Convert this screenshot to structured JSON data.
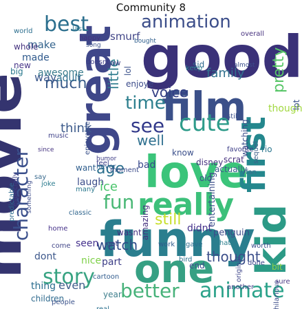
{
  "title": "Community 8",
  "words": [
    {
      "text": "movie",
      "color": "#34346f"
    },
    {
      "text": "good",
      "color": "#3a3178"
    },
    {
      "text": "love",
      "color": "#3bc47a"
    },
    {
      "text": "funny",
      "color": "#2a7e8e"
    },
    {
      "text": "film",
      "color": "#3b5089"
    },
    {
      "text": "great",
      "color": "#3f4789"
    },
    {
      "text": "kid",
      "color": "#2c9a86"
    },
    {
      "text": "one",
      "color": "#36a083"
    },
    {
      "text": "really",
      "color": "#3cc07a"
    },
    {
      "text": "first",
      "color": "#24878d"
    },
    {
      "text": "character",
      "color": "#3a4f8b"
    },
    {
      "text": "cute",
      "color": "#2d9b8a"
    },
    {
      "text": "story",
      "color": "#38a382"
    },
    {
      "text": "animation",
      "color": "#3c4e8a"
    },
    {
      "text": "animate",
      "color": "#2ba28a"
    },
    {
      "text": "best",
      "color": "#2c6f8e"
    },
    {
      "text": "time",
      "color": "#2d7f8e"
    },
    {
      "text": "see",
      "color": "#32398a"
    },
    {
      "text": "fun",
      "color": "#4ab876"
    },
    {
      "text": "better",
      "color": "#47b27a"
    },
    {
      "text": "age",
      "color": "#2b6f8d"
    },
    {
      "text": "much",
      "color": "#3b5c8b"
    },
    {
      "text": "little",
      "color": "#2f7d8e"
    },
    {
      "text": "voice",
      "color": "#323e84"
    },
    {
      "text": "family",
      "color": "#31718e"
    },
    {
      "text": "pretty",
      "color": "#58c668"
    },
    {
      "text": "well",
      "color": "#2d6f8e"
    },
    {
      "text": "watch",
      "color": "#2f4b88"
    },
    {
      "text": "thought",
      "color": "#3c4f8a"
    },
    {
      "text": "think",
      "color": "#3d5b8b"
    },
    {
      "text": "still",
      "color": "#c8df2c"
    },
    {
      "text": "ice",
      "color": "#49c46b"
    },
    {
      "text": "make",
      "color": "#34648d"
    },
    {
      "text": "made",
      "color": "#2f598c"
    },
    {
      "text": "way",
      "color": "#3a578b"
    },
    {
      "text": "smurf",
      "color": "#404587"
    },
    {
      "text": "adult",
      "color": "#2d6f8e"
    },
    {
      "text": "enjoye",
      "color": "#3a4a89"
    },
    {
      "text": "though",
      "color": "#a2d841"
    },
    {
      "text": "laugh",
      "color": "#3c4d8a"
    },
    {
      "text": "bad",
      "color": "#36478a"
    },
    {
      "text": "entertaining",
      "color": "#3c4e8a"
    },
    {
      "text": "didnt",
      "color": "#43308a"
    },
    {
      "text": "even",
      "color": "#3f5d8b"
    },
    {
      "text": "dont",
      "color": "#3d588b"
    },
    {
      "text": "thing",
      "color": "#2a6d8e"
    },
    {
      "text": "seen",
      "color": "#45328d"
    },
    {
      "text": "nice",
      "color": "#7ed048"
    },
    {
      "text": "part",
      "color": "#3b3d86"
    },
    {
      "text": "children",
      "color": "#2f6a8e"
    },
    {
      "text": "year",
      "color": "#3f7f8d"
    },
    {
      "text": "penguin",
      "color": "#3c4a89"
    },
    {
      "text": "awesome",
      "color": "#3a7c8d"
    },
    {
      "text": "new",
      "color": "#453387"
    },
    {
      "text": "big",
      "color": "#2a788e"
    },
    {
      "text": "whole",
      "color": "#45337f"
    },
    {
      "text": "world",
      "color": "#2c6e8e"
    },
    {
      "text": "lot",
      "color": "#3b528b"
    },
    {
      "text": "disney",
      "color": "#46317e"
    },
    {
      "text": "rio",
      "color": "#2a768e"
    },
    {
      "text": "music",
      "color": "#3c3f87"
    },
    {
      "text": "worth",
      "color": "#3a4d8a"
    },
    {
      "text": "original",
      "color": "#40478a"
    },
    {
      "text": "actually",
      "color": "#3b5a8b"
    },
    {
      "text": "scrat",
      "color": "#45307d"
    },
    {
      "text": "want",
      "color": "#2f5e8d"
    },
    {
      "text": "wasnt",
      "color": "#432f7f"
    },
    {
      "text": "amazing",
      "color": "#442f7d"
    },
    {
      "text": "end",
      "color": "#3a4c8a"
    },
    {
      "text": "bit",
      "color": "#8cd24a"
    },
    {
      "text": "another",
      "color": "#3e3c86"
    },
    {
      "text": "cartoon",
      "color": "#2f5a8c"
    },
    {
      "text": "got",
      "color": "#3b3d86"
    },
    {
      "text": "hilarious",
      "color": "#3d4e8a"
    },
    {
      "text": "people",
      "color": "#3b528b"
    },
    {
      "text": "say",
      "color": "#3a6b8e"
    },
    {
      "text": "joke",
      "color": "#2a7b8e"
    },
    {
      "text": "saw",
      "color": "#444789"
    },
    {
      "text": "lol",
      "color": "#3b518b"
    },
    {
      "text": "never",
      "color": "#2e5e8d"
    },
    {
      "text": "moment",
      "color": "#3a4a89"
    },
    {
      "text": "old",
      "color": "#3b528b"
    },
    {
      "text": "sid",
      "color": "#2f6a8e"
    },
    {
      "text": "keep",
      "color": "#2a7e8e"
    },
    {
      "text": "watching",
      "color": "#3b4d8a"
    },
    {
      "text": "sequel",
      "color": "#3d5f8b"
    },
    {
      "text": "know",
      "color": "#3a4e8a"
    },
    {
      "text": "many",
      "color": "#2c788e"
    },
    {
      "text": "done",
      "color": "#3b428a"
    },
    {
      "text": "bird",
      "color": "#2a708e"
    },
    {
      "text": "sure",
      "color": "#4c3a86"
    },
    {
      "text": "work",
      "color": "#2e5a8c"
    },
    {
      "text": "real",
      "color": "#2a6f8e"
    },
    {
      "text": "happy",
      "color": "#45337f"
    },
    {
      "text": "favorite",
      "color": "#3b3c86"
    },
    {
      "text": "fan",
      "color": "#3d6d8d"
    },
    {
      "text": "thats",
      "color": "#2c7f8e"
    },
    {
      "text": "home",
      "color": "#443088"
    },
    {
      "text": "enjoyable",
      "color": "#3b528b"
    },
    {
      "text": "gave",
      "color": "#2a6d8e"
    },
    {
      "text": "doesnt",
      "color": "#3a3b86"
    },
    {
      "text": "come",
      "color": "#404587"
    },
    {
      "text": "last",
      "color": "#2c768e"
    },
    {
      "text": "predictable",
      "color": "#2c6a8e"
    },
    {
      "text": "especially",
      "color": "#3c3f87"
    },
    {
      "text": "something",
      "color": "#3b4a89"
    },
    {
      "text": "classic",
      "color": "#2f658d"
    },
    {
      "text": "feel",
      "color": "#3b3d86"
    },
    {
      "text": "since",
      "color": "#44327f"
    },
    {
      "text": "still",
      "color": "#3a4f8b"
    },
    {
      "text": "humor",
      "color": "#3d3c86"
    },
    {
      "text": "bought",
      "color": "#2f5e8d"
    },
    {
      "text": "song",
      "color": "#3b528b"
    },
    {
      "text": "overall",
      "color": "#46317e"
    },
    {
      "text": "almost",
      "color": "#3a4d8a"
    }
  ]
}
